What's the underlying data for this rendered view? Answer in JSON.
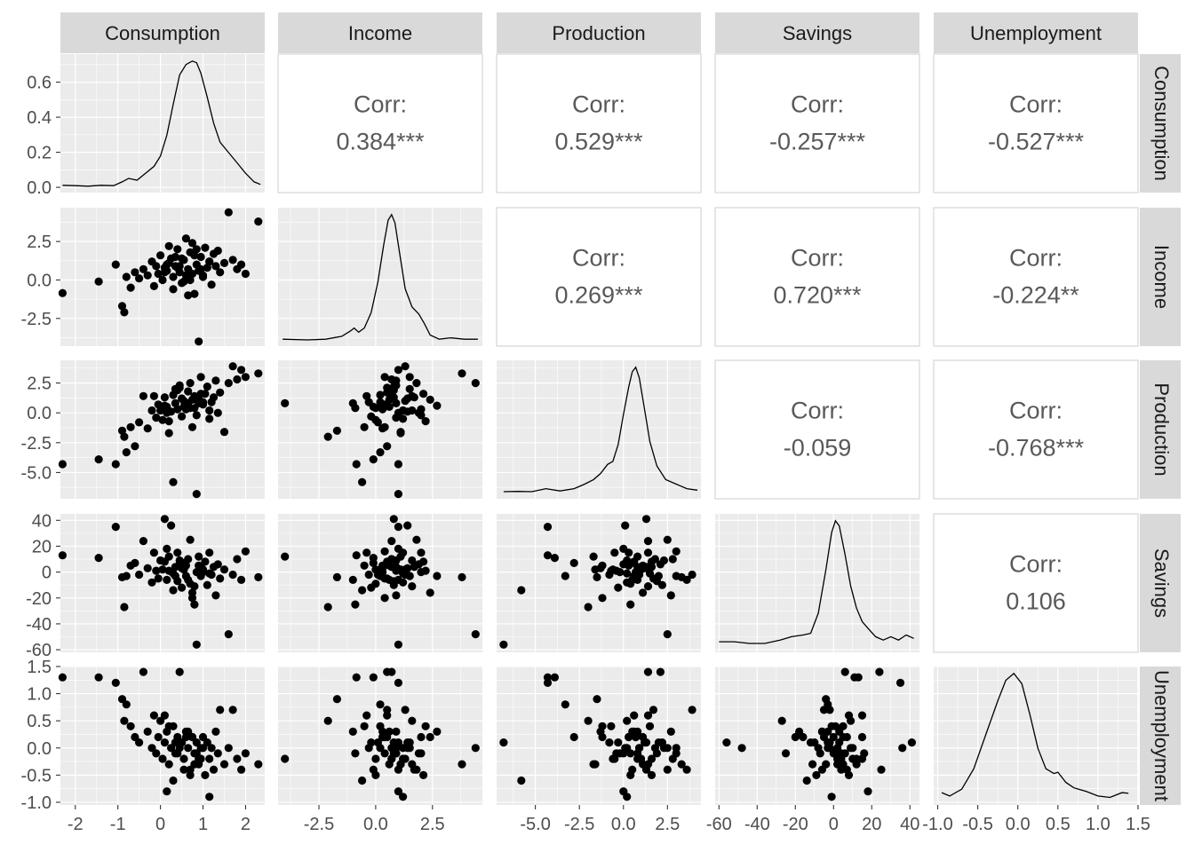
{
  "chart_data": {
    "type": "scatter",
    "variables": [
      "Consumption",
      "Income",
      "Production",
      "Savings",
      "Unemployment"
    ],
    "corr_label": "Corr:",
    "correlations": [
      {
        "row": "Consumption",
        "col": "Income",
        "value": "0.384***"
      },
      {
        "row": "Consumption",
        "col": "Production",
        "value": "0.529***"
      },
      {
        "row": "Consumption",
        "col": "Savings",
        "value": "-0.257***"
      },
      {
        "row": "Consumption",
        "col": "Unemployment",
        "value": "-0.527***"
      },
      {
        "row": "Income",
        "col": "Production",
        "value": "0.269***"
      },
      {
        "row": "Income",
        "col": "Savings",
        "value": "0.720***"
      },
      {
        "row": "Income",
        "col": "Unemployment",
        "value": "-0.224**"
      },
      {
        "row": "Production",
        "col": "Savings",
        "value": "-0.059"
      },
      {
        "row": "Production",
        "col": "Unemployment",
        "value": "-0.768***"
      },
      {
        "row": "Savings",
        "col": "Unemployment",
        "value": "0.106"
      }
    ],
    "x_axes": [
      {
        "var": "Consumption",
        "range": [
          -2.35,
          2.45
        ],
        "ticks": [
          -2,
          -1,
          0,
          1,
          2
        ],
        "tick_labels": [
          "-2",
          "-1",
          "0",
          "1",
          "2"
        ]
      },
      {
        "var": "Income",
        "range": [
          -4.3,
          4.7
        ],
        "ticks": [
          -2.5,
          0,
          2.5
        ],
        "tick_labels": [
          "-2.5",
          "0.0",
          "2.5"
        ]
      },
      {
        "var": "Production",
        "range": [
          -7.2,
          4.4
        ],
        "ticks": [
          -5,
          -2.5,
          0,
          2.5
        ],
        "tick_labels": [
          "-5.0",
          "-2.5",
          "0.0",
          "2.5"
        ]
      },
      {
        "var": "Savings",
        "range": [
          -62,
          45
        ],
        "ticks": [
          -60,
          -40,
          -20,
          0,
          20,
          40
        ],
        "tick_labels": [
          "-60",
          "-40",
          "-20",
          "0",
          "20",
          "40"
        ]
      },
      {
        "var": "Unemployment",
        "range": [
          -1.05,
          1.5
        ],
        "ticks": [
          -1,
          -0.5,
          0,
          0.5,
          1,
          1.5
        ],
        "tick_labels": [
          "-1.0",
          "-0.5",
          "0.0",
          "0.5",
          "1.0",
          "1.5"
        ]
      }
    ],
    "y_axes": [
      {
        "var": "Consumption",
        "range": [
          -0.03,
          0.76
        ],
        "ticks": [
          0,
          0.2,
          0.4,
          0.6
        ],
        "tick_labels": [
          "0.0",
          "0.2",
          "0.4",
          "0.6"
        ]
      },
      {
        "var": "Income",
        "range": [
          -4.3,
          4.7
        ],
        "ticks": [
          -2.5,
          0,
          2.5
        ],
        "tick_labels": [
          "-2.5",
          "0.0",
          "2.5"
        ]
      },
      {
        "var": "Production",
        "range": [
          -7.2,
          4.4
        ],
        "ticks": [
          -5,
          -2.5,
          0,
          2.5
        ],
        "tick_labels": [
          "-5.0",
          "-2.5",
          "0.0",
          "2.5"
        ]
      },
      {
        "var": "Savings",
        "range": [
          -62,
          45
        ],
        "ticks": [
          -60,
          -40,
          -20,
          0,
          20,
          40
        ],
        "tick_labels": [
          "-60",
          "-40",
          "-20",
          "0",
          "20",
          "40"
        ]
      },
      {
        "var": "Unemployment",
        "range": [
          -1.05,
          1.5
        ],
        "ticks": [
          -1,
          -0.5,
          0,
          0.5,
          1,
          1.5
        ],
        "tick_labels": [
          "-1.0",
          "-0.5",
          "0.0",
          "0.5",
          "1.0",
          "1.5"
        ]
      }
    ],
    "densities": {
      "Consumption": {
        "x": [
          -2.3,
          -2.0,
          -1.7,
          -1.4,
          -1.1,
          -0.9,
          -0.75,
          -0.55,
          -0.35,
          -0.15,
          0.0,
          0.15,
          0.3,
          0.45,
          0.6,
          0.75,
          0.85,
          0.95,
          1.1,
          1.25,
          1.4,
          1.6,
          1.8,
          2.0,
          2.2,
          2.35
        ],
        "y": [
          0.01,
          0.008,
          0.005,
          0.01,
          0.008,
          0.03,
          0.05,
          0.04,
          0.08,
          0.12,
          0.18,
          0.3,
          0.48,
          0.65,
          0.71,
          0.73,
          0.72,
          0.66,
          0.52,
          0.37,
          0.26,
          0.2,
          0.14,
          0.08,
          0.03,
          0.015
        ]
      },
      "Income": {
        "x": [
          -4.1,
          -3.0,
          -2.2,
          -1.5,
          -1.1,
          -0.95,
          -0.75,
          -0.5,
          -0.2,
          0.1,
          0.35,
          0.55,
          0.7,
          0.85,
          1.05,
          1.3,
          1.6,
          1.9,
          2.15,
          2.4,
          2.8,
          3.3,
          3.9,
          4.5
        ],
        "y": [
          0.01,
          0.005,
          0.01,
          0.03,
          0.07,
          0.09,
          0.06,
          0.09,
          0.2,
          0.42,
          0.68,
          0.86,
          0.9,
          0.84,
          0.63,
          0.37,
          0.24,
          0.19,
          0.12,
          0.04,
          0.01,
          0.02,
          0.01,
          0.01
        ]
      },
      "Production": {
        "x": [
          -6.8,
          -6.0,
          -5.2,
          -4.4,
          -3.6,
          -2.8,
          -2.2,
          -1.7,
          -1.3,
          -0.9,
          -0.6,
          -0.3,
          0.0,
          0.3,
          0.5,
          0.7,
          0.9,
          1.2,
          1.5,
          1.9,
          2.4,
          3.0,
          3.6,
          4.2
        ],
        "y": [
          0.01,
          0.012,
          0.01,
          0.03,
          0.015,
          0.03,
          0.06,
          0.09,
          0.13,
          0.19,
          0.21,
          0.32,
          0.52,
          0.7,
          0.8,
          0.83,
          0.76,
          0.55,
          0.34,
          0.18,
          0.09,
          0.06,
          0.03,
          0.02
        ]
      },
      "Savings": {
        "x": [
          -60,
          -52,
          -44,
          -36,
          -28,
          -22,
          -16,
          -12,
          -8,
          -4,
          -1,
          1,
          3,
          6,
          9,
          12,
          15,
          18,
          22,
          26,
          30,
          34,
          38,
          42
        ],
        "y": [
          0.003,
          0.003,
          0.002,
          0.002,
          0.004,
          0.006,
          0.007,
          0.008,
          0.02,
          0.046,
          0.068,
          0.075,
          0.072,
          0.055,
          0.036,
          0.023,
          0.015,
          0.011,
          0.006,
          0.004,
          0.006,
          0.004,
          0.007,
          0.005
        ]
      },
      "Unemployment": {
        "x": [
          -0.95,
          -0.85,
          -0.7,
          -0.55,
          -0.4,
          -0.25,
          -0.15,
          -0.05,
          0.05,
          0.15,
          0.25,
          0.35,
          0.45,
          0.5,
          0.6,
          0.7,
          0.85,
          1.0,
          1.15,
          1.3,
          1.38
        ],
        "y": [
          0.1,
          0.05,
          0.15,
          0.45,
          0.95,
          1.45,
          1.75,
          1.85,
          1.7,
          1.25,
          0.75,
          0.45,
          0.38,
          0.4,
          0.25,
          0.17,
          0.12,
          0.05,
          0.03,
          0.1,
          0.09
        ]
      }
    },
    "scatter": {
      "Consumption": [
        -2.3,
        -1.45,
        -1.05,
        -0.9,
        -0.85,
        -0.8,
        -0.7,
        -0.6,
        -0.5,
        -0.4,
        -0.3,
        -0.2,
        -0.15,
        -0.1,
        -0.05,
        0.0,
        0.05,
        0.1,
        0.15,
        0.2,
        0.25,
        0.3,
        0.35,
        0.4,
        0.45,
        0.5,
        0.55,
        0.6,
        0.65,
        0.7,
        0.75,
        0.8,
        0.85,
        0.9,
        0.95,
        1.0,
        1.05,
        1.1,
        1.15,
        1.2,
        1.25,
        1.3,
        1.35,
        1.4,
        1.5,
        1.6,
        1.7,
        1.8,
        1.9,
        2.0,
        2.3,
        0.1,
        0.3,
        0.5,
        0.7,
        0.9,
        0.2,
        0.4,
        0.6,
        0.8,
        1.0,
        0.15,
        0.35,
        0.55,
        0.75,
        0.95,
        1.15,
        0.45,
        0.65,
        0.85
      ],
      "Income": [
        -0.85,
        -0.1,
        1.0,
        -1.7,
        -2.1,
        0.2,
        -0.5,
        0.5,
        0.1,
        0.7,
        0.3,
        1.2,
        -0.4,
        0.9,
        0.4,
        1.6,
        0.0,
        0.8,
        0.6,
        1.1,
        1.4,
        0.2,
        0.9,
        2.0,
        0.5,
        -0.2,
        1.3,
        2.7,
        0.7,
        1.8,
        0.4,
        -0.9,
        1.0,
        0.6,
        1.5,
        0.3,
        2.1,
        0.8,
        1.2,
        -0.3,
        1.7,
        0.9,
        1.9,
        0.5,
        1.1,
        4.4,
        1.3,
        0.7,
        1.0,
        0.4,
        3.8,
        0.5,
        -0.6,
        1.4,
        0.0,
        -4.0,
        2.2,
        0.8,
        0.3,
        1.6,
        0.2,
        1.0,
        1.5,
        -0.1,
        2.4,
        0.7,
        1.2,
        0.9,
        -1.0,
        2.0
      ],
      "Production": [
        -4.3,
        -3.9,
        -4.3,
        -1.5,
        -2.0,
        -3.3,
        -1.2,
        -2.8,
        -0.8,
        1.4,
        -1.3,
        0.2,
        1.4,
        -0.4,
        0.7,
        0.2,
        -0.6,
        1.3,
        0.5,
        -1.7,
        0.1,
        1.5,
        0.8,
        0.3,
        2.1,
        -0.3,
        1.0,
        0.6,
        1.8,
        2.5,
        -1.2,
        0.4,
        -6.8,
        1.1,
        3.0,
        0.7,
        1.6,
        2.2,
        -0.5,
        0.9,
        1.3,
        2.7,
        0.0,
        1.7,
        -1.6,
        2.5,
        3.9,
        2.8,
        3.6,
        3.0,
        3.3,
        0.6,
        -5.8,
        1.2,
        0.4,
        0.8,
        -0.7,
        1.9,
        0.3,
        1.4,
        0.9,
        0.0,
        2.0,
        0.5,
        1.1,
        1.6,
        0.2,
        2.3,
        0.8,
        -0.2
      ],
      "Savings": [
        13.0,
        11.0,
        35.0,
        -4.0,
        -27.0,
        -3.0,
        5.0,
        7.0,
        -2.0,
        24.0,
        3.0,
        -8.0,
        15.0,
        1.0,
        -5.0,
        9.0,
        2.0,
        41.0,
        -6.0,
        12.0,
        36.0,
        -1.0,
        4.0,
        15.0,
        6.0,
        -12.0,
        2.0,
        -3.0,
        10.0,
        25.0,
        -20.0,
        -25.0,
        -56.0,
        5.0,
        -3.0,
        0.0,
        8.0,
        -10.0,
        15.0,
        -2.0,
        4.0,
        -18.0,
        6.0,
        -5.0,
        2.0,
        -48.0,
        -2.0,
        10.0,
        -6.0,
        16.0,
        -4.0,
        8.0,
        -14.0,
        3.0,
        -9.0,
        12.0,
        1.0,
        -7.0,
        5.0,
        -11.0,
        2.0,
        18.0,
        -3.0,
        7.0,
        -16.0,
        4.0,
        -1.0,
        9.0,
        -6.0,
        0.0
      ],
      "Unemployment": [
        1.3,
        1.3,
        1.2,
        0.9,
        0.5,
        0.8,
        0.4,
        0.2,
        0.1,
        1.4,
        0.3,
        0.0,
        0.6,
        -0.1,
        0.2,
        0.5,
        -0.2,
        0.1,
        0.3,
        -0.3,
        0.0,
        0.4,
        -0.1,
        0.2,
        1.4,
        0.1,
        -0.2,
        0.3,
        0.0,
        -0.4,
        0.2,
        -0.1,
        0.1,
        -0.3,
        0.0,
        0.2,
        -0.5,
        0.1,
        -0.2,
        0.0,
        -0.4,
        0.3,
        -0.1,
        0.7,
        -0.3,
        0.0,
        0.7,
        -0.2,
        -0.4,
        -0.1,
        -0.3,
        0.6,
        -0.6,
        0.1,
        -0.5,
        -0.2,
        0.4,
        -0.1,
        0.2,
        -0.3,
        0.0,
        -0.8,
        0.1,
        -0.4,
        0.2,
        -0.2,
        -0.9,
        0.0,
        0.3,
        -0.1
      ]
    }
  }
}
